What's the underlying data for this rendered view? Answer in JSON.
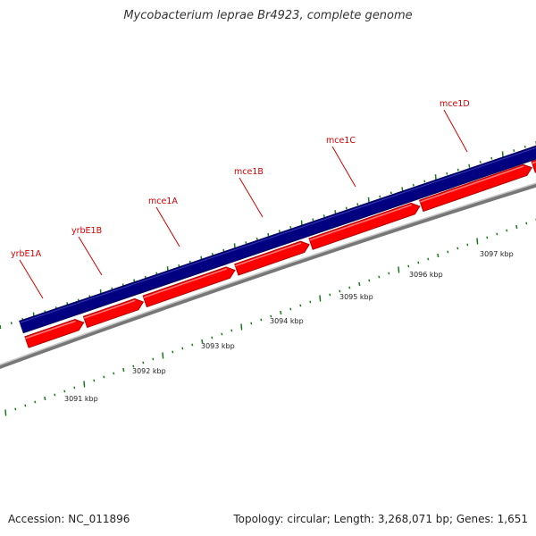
{
  "header": {
    "title": "Mycobacterium leprae Br4923, complete genome"
  },
  "footer": {
    "accession": "Accession: NC_011896",
    "summary": "Topology: circular; Length: 3,268,071 bp; Genes: 1,651"
  },
  "colors": {
    "forward_track": "#000080",
    "gene_arrow": "#ff0000",
    "gene_label": "#d00000",
    "backbone": "#888888",
    "tick": "#1a7a1a"
  },
  "genes": [
    {
      "name": "yrbE1A"
    },
    {
      "name": "yrbE1B"
    },
    {
      "name": "mce1A"
    },
    {
      "name": "mce1B"
    },
    {
      "name": "mce1C"
    },
    {
      "name": "mce1D"
    }
  ],
  "scale_labels": [
    "3091 kbp",
    "3092 kbp",
    "3093 kbp",
    "3094 kbp",
    "3095 kbp",
    "3096 kbp",
    "3097 kbp"
  ]
}
